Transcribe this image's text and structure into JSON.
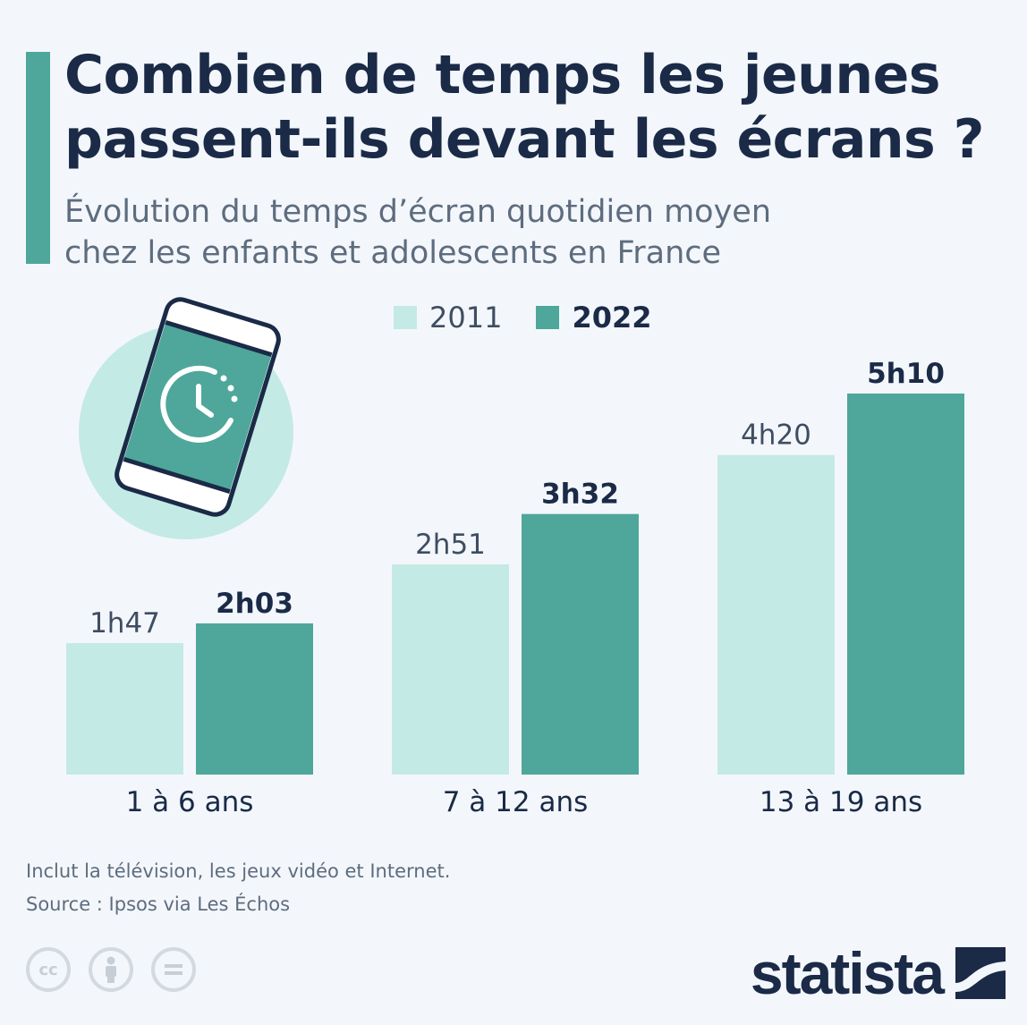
{
  "title": "Combien de temps les jeunes passent-ils devant les écrans ?",
  "subtitle_line1": "Évolution du temps d’écran quotidien moyen",
  "subtitle_line2": "chez les enfants et adolescents en France",
  "colors": {
    "accent": "#4ea79a",
    "light": "#c4eae5",
    "dark": "#4ea79a",
    "text": "#1a2a47",
    "muted": "#5e6c7e"
  },
  "chart_data": {
    "type": "bar",
    "categories": [
      "1 à 6 ans",
      "7 à 12 ans",
      "13 à 19 ans"
    ],
    "series": [
      {
        "name": "2011",
        "values": [
          107,
          171,
          260
        ],
        "labels": [
          "1h47",
          "2h51",
          "4h20"
        ]
      },
      {
        "name": "2022",
        "values": [
          123,
          212,
          310
        ],
        "labels": [
          "2h03",
          "3h32",
          "5h10"
        ]
      }
    ],
    "units": "minutes",
    "ylim": [
      0,
      310
    ],
    "grid": false,
    "legend_position": "top"
  },
  "footnote": "Inclut la télévision, les jeux vidéo et Internet.",
  "source": "Source : Ipsos via Les Échos",
  "license_icons": [
    "cc-icon",
    "person-icon",
    "equals-icon"
  ],
  "brand": "statista"
}
